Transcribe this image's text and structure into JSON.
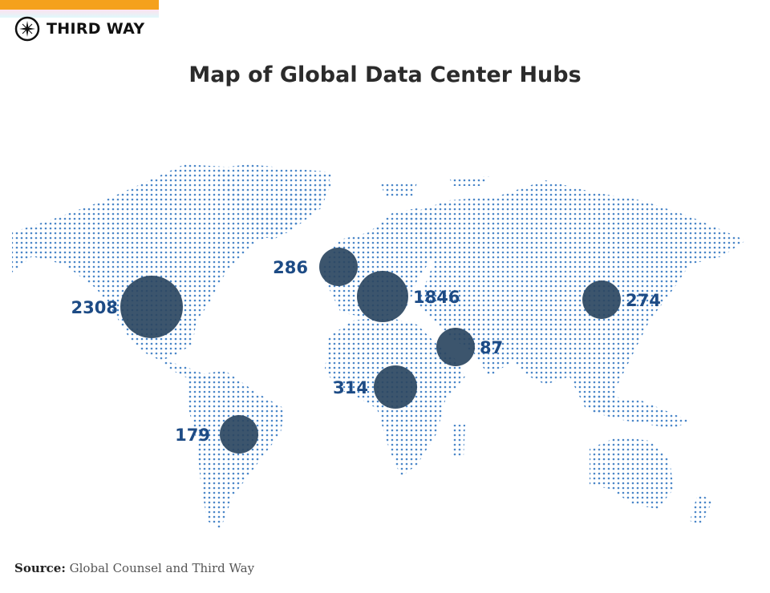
{
  "brand": {
    "name": "THIRD WAY"
  },
  "title": "Map of Global Data Center Hubs",
  "colors": {
    "dots": "#4a86c8",
    "bubble": "#2b4661",
    "label": "#1d4b85",
    "accent_bar": "#f5a11c"
  },
  "hubs": [
    {
      "region": "North America",
      "value": "2308"
    },
    {
      "region": "Western Europe",
      "value": "1846"
    },
    {
      "region": "UK / Ireland",
      "value": "286"
    },
    {
      "region": "East Asia",
      "value": "274"
    },
    {
      "region": "Middle East",
      "value": "87"
    },
    {
      "region": "Africa",
      "value": "314"
    },
    {
      "region": "South America",
      "value": "179"
    }
  ],
  "source": {
    "label": "Source:",
    "text": "Global Counsel and Third Way"
  }
}
